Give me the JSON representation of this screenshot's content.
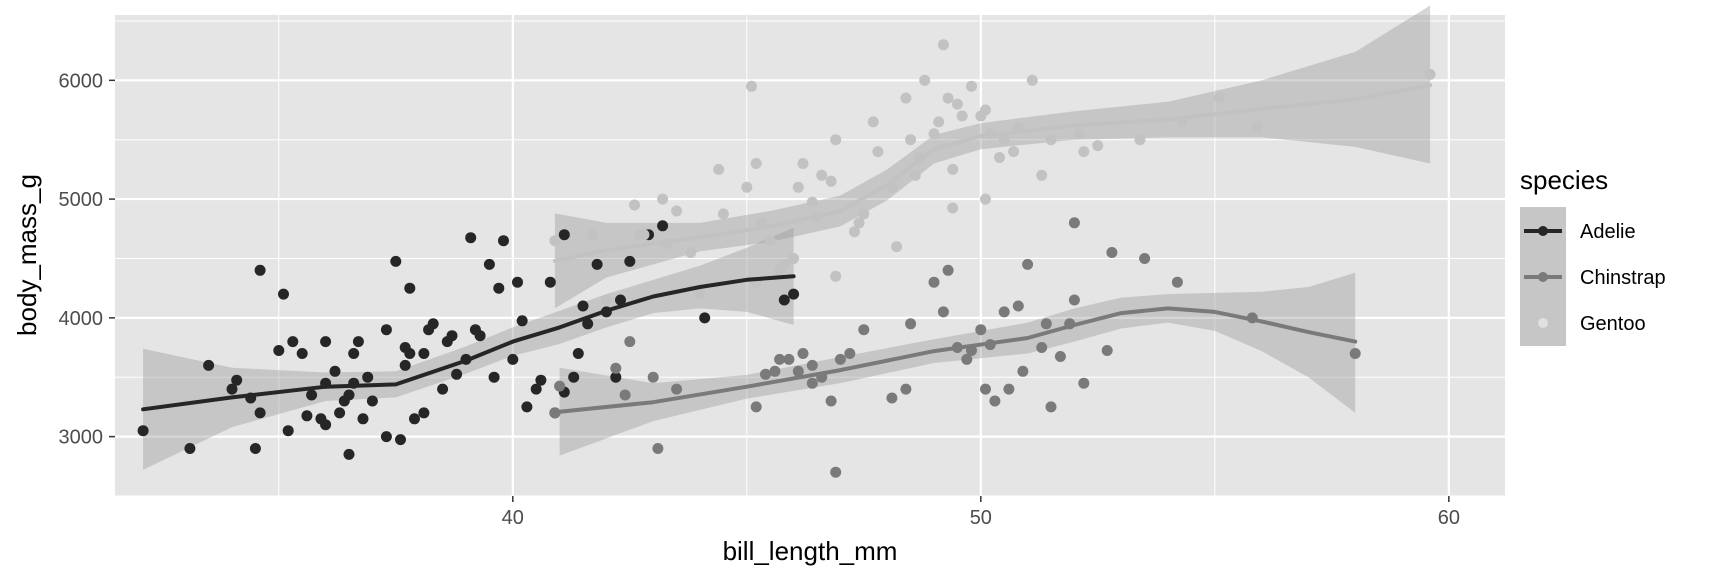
{
  "chart_data": {
    "type": "scatter",
    "title": "",
    "xlabel": "bill_length_mm",
    "ylabel": "body_mass_g",
    "xlim": [
      31.5,
      61.2
    ],
    "ylim": [
      2500,
      6550
    ],
    "x_ticks": [
      40,
      50,
      60
    ],
    "y_ticks": [
      3000,
      4000,
      5000,
      6000
    ],
    "grid": true,
    "legend": {
      "title": "species",
      "position": "right"
    },
    "colors": {
      "panel": "#e5e5e5",
      "grid": "#ffffff",
      "ribbon": "#999999"
    },
    "series": [
      {
        "name": "Adelie",
        "color": "#262626",
        "points": [
          [
            32.1,
            3050
          ],
          [
            33.1,
            2900
          ],
          [
            33.5,
            3600
          ],
          [
            34.0,
            3400
          ],
          [
            34.1,
            3475
          ],
          [
            34.4,
            3325
          ],
          [
            34.5,
            2900
          ],
          [
            34.6,
            4400
          ],
          [
            34.6,
            3200
          ],
          [
            35.0,
            3725
          ],
          [
            35.1,
            4200
          ],
          [
            35.2,
            3050
          ],
          [
            35.3,
            3800
          ],
          [
            35.5,
            3700
          ],
          [
            35.6,
            3175
          ],
          [
            35.7,
            3350
          ],
          [
            35.9,
            3150
          ],
          [
            36.0,
            3450
          ],
          [
            36.0,
            3800
          ],
          [
            36.0,
            3100
          ],
          [
            36.2,
            3550
          ],
          [
            36.3,
            3200
          ],
          [
            36.4,
            3300
          ],
          [
            36.5,
            3350
          ],
          [
            36.5,
            2850
          ],
          [
            36.6,
            3700
          ],
          [
            36.7,
            3800
          ],
          [
            36.8,
            3150
          ],
          [
            36.9,
            3500
          ],
          [
            37.0,
            3300
          ],
          [
            37.3,
            3900
          ],
          [
            37.3,
            3000
          ],
          [
            37.5,
            4475
          ],
          [
            37.6,
            2975
          ],
          [
            37.7,
            3750
          ],
          [
            37.8,
            4250
          ],
          [
            37.8,
            3700
          ],
          [
            37.9,
            3150
          ],
          [
            38.1,
            3200
          ],
          [
            38.1,
            3700
          ],
          [
            38.2,
            3900
          ],
          [
            38.3,
            3950
          ],
          [
            38.5,
            3400
          ],
          [
            38.6,
            3800
          ],
          [
            38.8,
            3525
          ],
          [
            39.0,
            3650
          ],
          [
            39.1,
            4675
          ],
          [
            39.2,
            3900
          ],
          [
            39.5,
            4450
          ],
          [
            39.6,
            3500
          ],
          [
            39.7,
            4250
          ],
          [
            39.8,
            4650
          ],
          [
            40.1,
            4300
          ],
          [
            40.2,
            3975
          ],
          [
            40.3,
            3250
          ],
          [
            40.5,
            3400
          ],
          [
            40.6,
            3475
          ],
          [
            40.8,
            4300
          ],
          [
            40.9,
            3200
          ],
          [
            41.1,
            4700
          ],
          [
            41.1,
            3375
          ],
          [
            41.3,
            3500
          ],
          [
            41.4,
            3700
          ],
          [
            41.5,
            4100
          ],
          [
            41.8,
            4450
          ],
          [
            42.0,
            4050
          ],
          [
            42.2,
            3500
          ],
          [
            42.3,
            4150
          ],
          [
            42.5,
            4475
          ],
          [
            42.9,
            4700
          ],
          [
            43.2,
            4775
          ],
          [
            44.1,
            4000
          ],
          [
            45.8,
            4150
          ],
          [
            46.0,
            4200
          ],
          [
            36.6,
            3450
          ],
          [
            37.7,
            3600
          ],
          [
            38.7,
            3850
          ],
          [
            39.3,
            3850
          ],
          [
            40.0,
            3650
          ],
          [
            41.6,
            3950
          ]
        ],
        "smooth": [
          [
            32.1,
            3230
          ],
          [
            34.0,
            3330
          ],
          [
            36.0,
            3420
          ],
          [
            37.5,
            3440
          ],
          [
            39.0,
            3640
          ],
          [
            40.0,
            3800
          ],
          [
            41.0,
            3920
          ],
          [
            42.0,
            4060
          ],
          [
            43.0,
            4180
          ],
          [
            44.0,
            4260
          ],
          [
            45.0,
            4320
          ],
          [
            46.0,
            4350
          ]
        ],
        "band": [
          [
            32.1,
            2720,
            3740
          ],
          [
            34.0,
            3080,
            3580
          ],
          [
            36.0,
            3300,
            3540
          ],
          [
            37.5,
            3330,
            3550
          ],
          [
            39.0,
            3530,
            3760
          ],
          [
            40.0,
            3680,
            3920
          ],
          [
            41.0,
            3780,
            4060
          ],
          [
            42.0,
            3920,
            4200
          ],
          [
            43.0,
            4040,
            4320
          ],
          [
            44.0,
            4080,
            4440
          ],
          [
            45.0,
            4050,
            4590
          ],
          [
            46.0,
            3940,
            4760
          ]
        ]
      },
      {
        "name": "Chinstrap",
        "color": "#7a7a7a",
        "points": [
          [
            40.9,
            3200
          ],
          [
            41.0,
            3425
          ],
          [
            42.2,
            3575
          ],
          [
            42.4,
            3350
          ],
          [
            42.5,
            3800
          ],
          [
            43.0,
            3500
          ],
          [
            43.1,
            2900
          ],
          [
            43.5,
            3400
          ],
          [
            45.2,
            3250
          ],
          [
            45.4,
            3525
          ],
          [
            45.6,
            3550
          ],
          [
            45.9,
            3650
          ],
          [
            46.1,
            3550
          ],
          [
            46.2,
            3700
          ],
          [
            46.4,
            3450
          ],
          [
            46.6,
            3500
          ],
          [
            46.8,
            3300
          ],
          [
            46.9,
            2700
          ],
          [
            47.2,
            3700
          ],
          [
            47.5,
            3900
          ],
          [
            48.1,
            3325
          ],
          [
            48.4,
            3400
          ],
          [
            48.5,
            3950
          ],
          [
            49.0,
            4300
          ],
          [
            49.2,
            4050
          ],
          [
            49.5,
            3750
          ],
          [
            49.7,
            3650
          ],
          [
            49.8,
            3725
          ],
          [
            50.0,
            3900
          ],
          [
            50.1,
            3400
          ],
          [
            50.3,
            3300
          ],
          [
            50.5,
            4050
          ],
          [
            50.6,
            3400
          ],
          [
            50.8,
            4100
          ],
          [
            50.9,
            3550
          ],
          [
            51.0,
            4450
          ],
          [
            51.3,
            3750
          ],
          [
            51.4,
            3950
          ],
          [
            51.5,
            3250
          ],
          [
            51.7,
            3675
          ],
          [
            51.9,
            3950
          ],
          [
            52.0,
            4800
          ],
          [
            52.2,
            3450
          ],
          [
            52.7,
            3725
          ],
          [
            52.8,
            4550
          ],
          [
            53.5,
            4500
          ],
          [
            54.2,
            4300
          ],
          [
            55.8,
            4000
          ],
          [
            58.0,
            3700
          ],
          [
            46.4,
            3600
          ],
          [
            47.0,
            3650
          ],
          [
            49.3,
            4400
          ],
          [
            50.2,
            3775
          ],
          [
            52.0,
            4150
          ],
          [
            45.7,
            3650
          ]
        ],
        "smooth": [
          [
            41.0,
            3210
          ],
          [
            43.0,
            3290
          ],
          [
            45.0,
            3420
          ],
          [
            47.0,
            3560
          ],
          [
            49.0,
            3720
          ],
          [
            51.0,
            3830
          ],
          [
            52.0,
            3940
          ],
          [
            53.0,
            4040
          ],
          [
            54.0,
            4080
          ],
          [
            55.0,
            4050
          ],
          [
            56.0,
            3970
          ],
          [
            57.0,
            3880
          ],
          [
            58.0,
            3800
          ]
        ],
        "band": [
          [
            41.0,
            2840,
            3580
          ],
          [
            43.0,
            3130,
            3450
          ],
          [
            45.0,
            3320,
            3520
          ],
          [
            47.0,
            3450,
            3670
          ],
          [
            49.0,
            3620,
            3820
          ],
          [
            51.0,
            3700,
            3960
          ],
          [
            52.0,
            3800,
            4080
          ],
          [
            53.0,
            3910,
            4170
          ],
          [
            54.0,
            3960,
            4200
          ],
          [
            55.0,
            3890,
            4210
          ],
          [
            56.0,
            3720,
            4220
          ],
          [
            57.0,
            3500,
            4260
          ],
          [
            58.0,
            3200,
            4380
          ]
        ]
      },
      {
        "name": "Gentoo",
        "color": "#c2c2c2",
        "points": [
          [
            40.9,
            4650
          ],
          [
            41.7,
            4700
          ],
          [
            42.0,
            4150
          ],
          [
            42.6,
            4950
          ],
          [
            42.7,
            4700
          ],
          [
            42.8,
            4700
          ],
          [
            43.2,
            5000
          ],
          [
            43.3,
            4625
          ],
          [
            43.5,
            4900
          ],
          [
            44.0,
            4200
          ],
          [
            44.4,
            5250
          ],
          [
            44.5,
            4875
          ],
          [
            45.0,
            5100
          ],
          [
            45.1,
            5950
          ],
          [
            45.2,
            5300
          ],
          [
            45.3,
            4800
          ],
          [
            45.5,
            4650
          ],
          [
            45.7,
            4400
          ],
          [
            46.1,
            5100
          ],
          [
            46.2,
            5300
          ],
          [
            46.4,
            4975
          ],
          [
            46.5,
            4850
          ],
          [
            46.6,
            5200
          ],
          [
            46.8,
            5150
          ],
          [
            46.9,
            5500
          ],
          [
            47.3,
            4725
          ],
          [
            47.5,
            4875
          ],
          [
            47.7,
            5650
          ],
          [
            47.8,
            5400
          ],
          [
            48.1,
            5100
          ],
          [
            48.2,
            4600
          ],
          [
            48.4,
            5850
          ],
          [
            48.5,
            5500
          ],
          [
            48.7,
            5350
          ],
          [
            48.8,
            6000
          ],
          [
            49.0,
            5550
          ],
          [
            49.1,
            5650
          ],
          [
            49.2,
            6300
          ],
          [
            49.3,
            5850
          ],
          [
            49.4,
            4925
          ],
          [
            49.5,
            5800
          ],
          [
            49.6,
            5700
          ],
          [
            49.8,
            5950
          ],
          [
            50.0,
            5700
          ],
          [
            50.1,
            5000
          ],
          [
            50.2,
            5550
          ],
          [
            50.4,
            5350
          ],
          [
            50.5,
            5500
          ],
          [
            50.7,
            5400
          ],
          [
            50.8,
            5600
          ],
          [
            51.1,
            6000
          ],
          [
            51.3,
            5200
          ],
          [
            51.5,
            5500
          ],
          [
            52.1,
            5550
          ],
          [
            52.5,
            5450
          ],
          [
            53.4,
            5500
          ],
          [
            54.3,
            5650
          ],
          [
            55.1,
            5850
          ],
          [
            55.9,
            5600
          ],
          [
            59.6,
            6050
          ],
          [
            45.8,
            4450
          ],
          [
            46.0,
            4500
          ],
          [
            47.4,
            4800
          ],
          [
            48.6,
            5200
          ],
          [
            50.1,
            5750
          ],
          [
            52.2,
            5400
          ],
          [
            43.8,
            4550
          ],
          [
            45.2,
            4300
          ],
          [
            46.9,
            4350
          ],
          [
            49.4,
            5250
          ]
        ],
        "smooth": [
          [
            40.9,
            4480
          ],
          [
            42.0,
            4570
          ],
          [
            44.0,
            4680
          ],
          [
            45.5,
            4770
          ],
          [
            47.0,
            4900
          ],
          [
            48.0,
            5120
          ],
          [
            49.0,
            5420
          ],
          [
            50.0,
            5530
          ],
          [
            52.0,
            5620
          ],
          [
            54.0,
            5670
          ],
          [
            56.0,
            5760
          ],
          [
            58.0,
            5840
          ],
          [
            59.6,
            5960
          ]
        ],
        "band": [
          [
            40.9,
            4080,
            4880
          ],
          [
            42.0,
            4340,
            4800
          ],
          [
            44.0,
            4560,
            4800
          ],
          [
            45.5,
            4640,
            4900
          ],
          [
            47.0,
            4770,
            5030
          ],
          [
            48.0,
            4990,
            5250
          ],
          [
            49.0,
            5300,
            5540
          ],
          [
            50.0,
            5420,
            5640
          ],
          [
            52.0,
            5500,
            5740
          ],
          [
            54.0,
            5520,
            5820
          ],
          [
            56.0,
            5520,
            6000
          ],
          [
            58.0,
            5440,
            6240
          ],
          [
            59.6,
            5300,
            6630
          ]
        ]
      }
    ]
  }
}
